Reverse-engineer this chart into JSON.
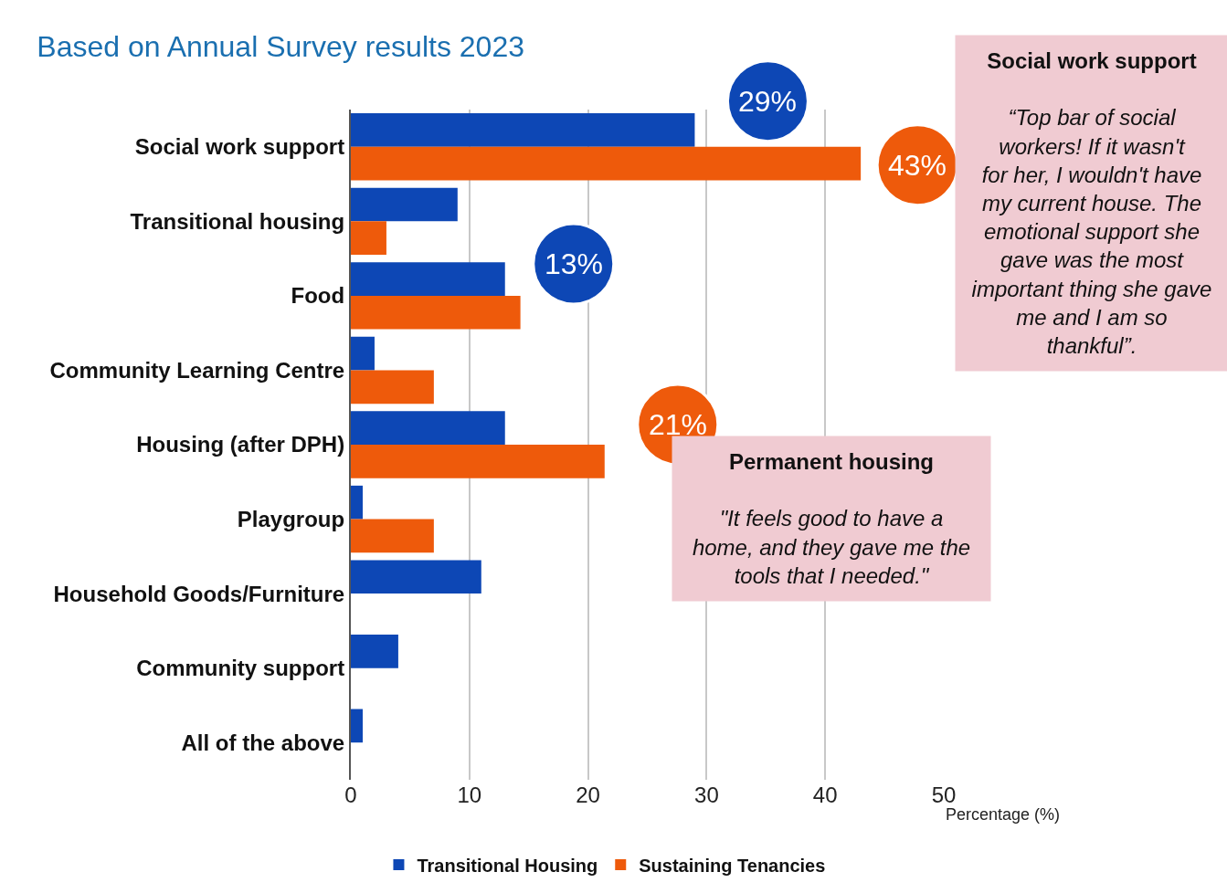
{
  "chart_data": {
    "type": "bar",
    "orientation": "horizontal",
    "title": "Based on Annual Survey results 2023",
    "xlabel": "Percentage (%)",
    "categories": [
      "Social work support",
      "Transitional housing",
      "Food",
      "Community Learning Centre",
      "Housing (after DPH)",
      "Playgroup",
      "Household Goods/Furniture",
      "Community support",
      "All of the above"
    ],
    "series": [
      {
        "name": "Transitional Housing",
        "color": "#0d47b5",
        "values": [
          29,
          9,
          13,
          2,
          13,
          1,
          11,
          4,
          1
        ]
      },
      {
        "name": "Sustaining Tenancies",
        "color": "#ee5a0b",
        "values": [
          43,
          3,
          14.3,
          7,
          21.4,
          7,
          null,
          null,
          null
        ]
      }
    ],
    "xlim": [
      0,
      50
    ],
    "xticks": [
      0,
      10,
      20,
      30,
      40,
      50
    ],
    "grid": "x",
    "legend": "bottom",
    "annotations": [
      {
        "text": "29%",
        "x": 29,
        "y": "Social work support"
      },
      {
        "text": "43%",
        "x": 43,
        "y": "Social work support"
      },
      {
        "text": "13%",
        "x": 13,
        "y": "Food"
      },
      {
        "text": "21%",
        "x": 21.4,
        "y": "Housing (after DPH)"
      },
      "Social work support",
      "“Top bar of social workers! If it wasn't for her, I wouldn't have my current house. The emotional support she gave was the most important thing she gave me and I am so thankful”.",
      "Permanent housing",
      "\"It feels good to have a home, and they gave me the tools that I needed.\""
    ]
  }
}
